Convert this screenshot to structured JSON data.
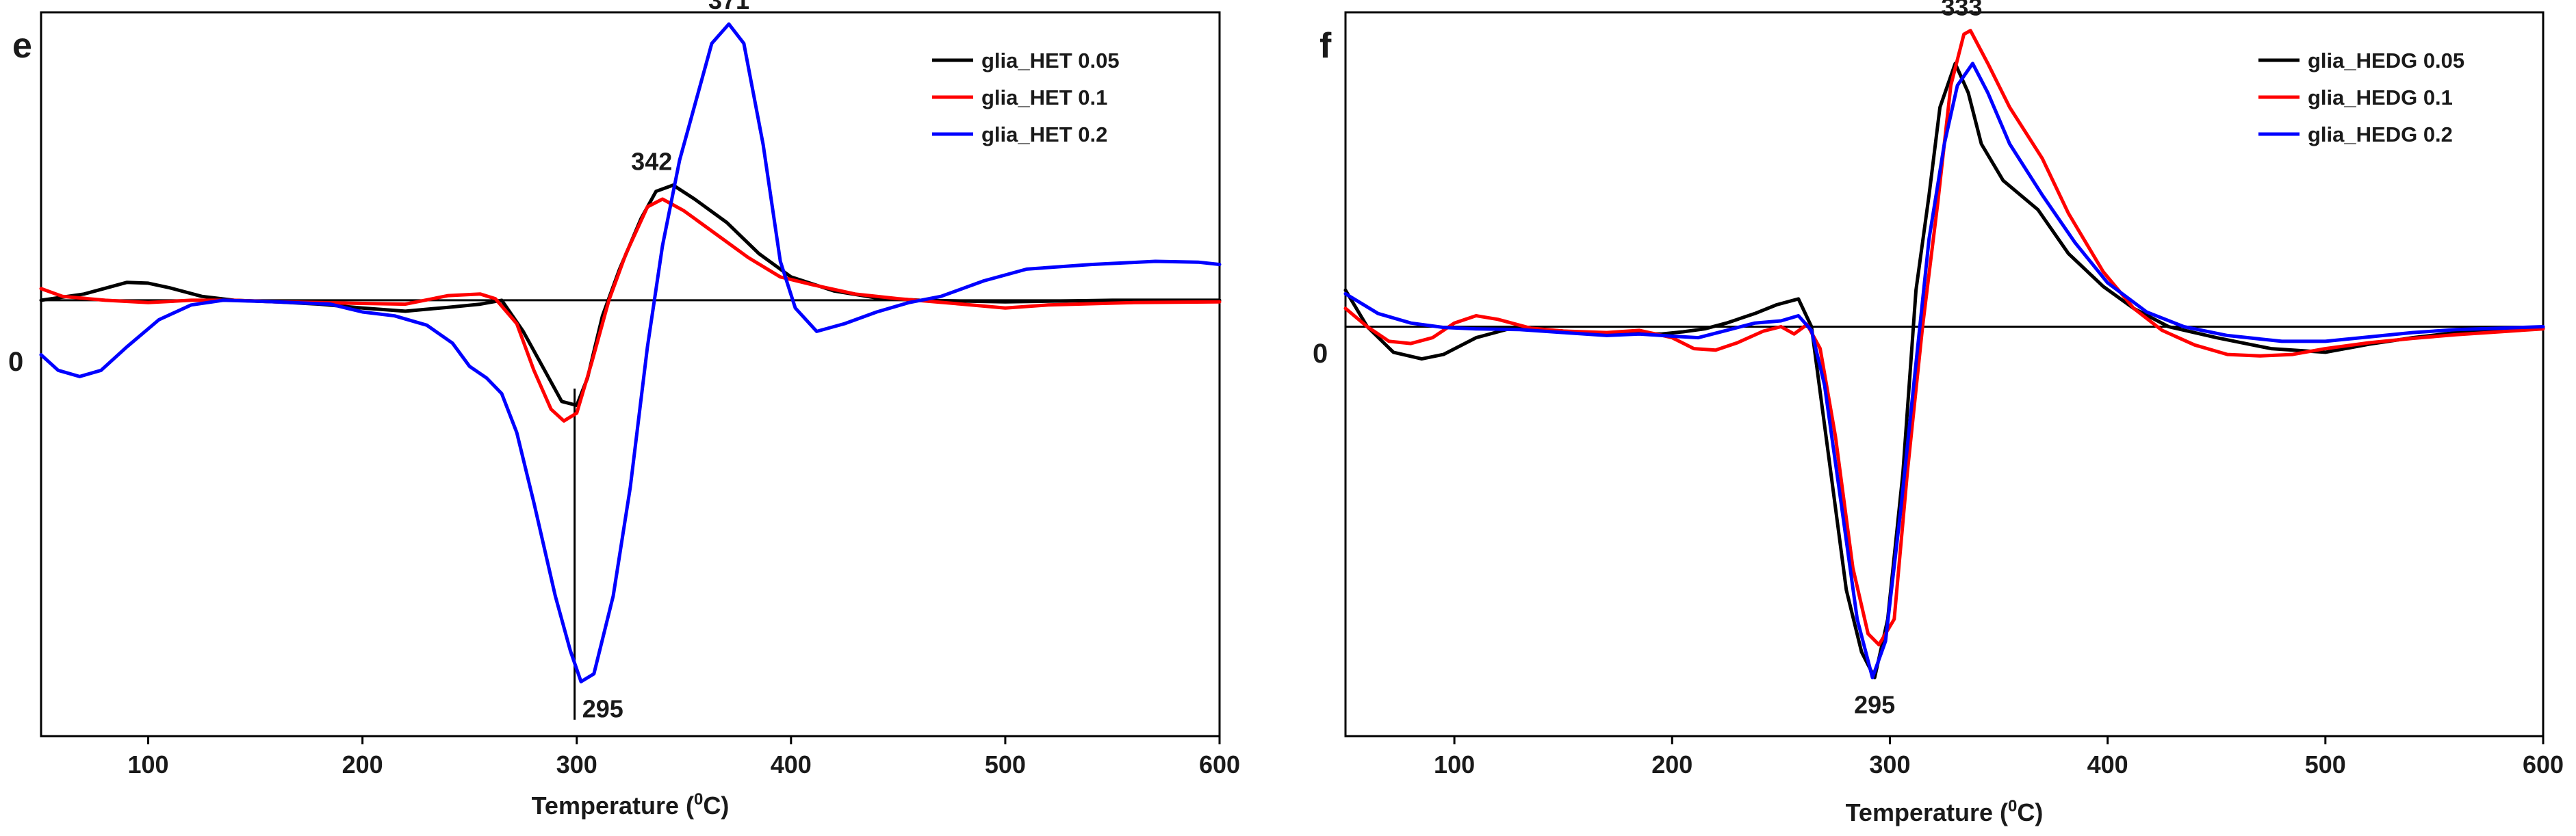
{
  "chart_data": [
    {
      "type": "line",
      "panel": "e",
      "title": "",
      "xlabel_main": "Temperature (",
      "xlabel_sup": "0",
      "xlabel_end": "C)",
      "ylabel": "",
      "xlim": [
        50,
        600
      ],
      "ylim": [
        -56,
        37
      ],
      "x_ticks": [
        100,
        200,
        300,
        400,
        500,
        600
      ],
      "x_tick_labels": [
        "100",
        "200",
        "300",
        "400",
        "500",
        "600"
      ],
      "zero_label": "0",
      "legend_position": "top-right",
      "series": [
        {
          "name": "glia_HET 0.05",
          "color": "#000000",
          "points": [
            [
              50,
              0
            ],
            [
              70,
              0.8
            ],
            [
              90,
              2.3
            ],
            [
              100,
              2.2
            ],
            [
              110,
              1.6
            ],
            [
              125,
              0.5
            ],
            [
              140,
              0
            ],
            [
              160,
              -0.2
            ],
            [
              180,
              -0.5
            ],
            [
              200,
              -1
            ],
            [
              220,
              -1.4
            ],
            [
              240,
              -0.9
            ],
            [
              255,
              -0.5
            ],
            [
              265,
              0
            ],
            [
              275,
              -4
            ],
            [
              285,
              -9
            ],
            [
              293,
              -13
            ],
            [
              300,
              -13.5
            ],
            [
              305,
              -10
            ],
            [
              312,
              -2
            ],
            [
              320,
              4
            ],
            [
              330,
              10.5
            ],
            [
              337,
              14
            ],
            [
              345,
              14.8
            ],
            [
              355,
              13
            ],
            [
              370,
              10
            ],
            [
              385,
              6
            ],
            [
              400,
              3
            ],
            [
              420,
              1.2
            ],
            [
              440,
              0.3
            ],
            [
              460,
              0
            ],
            [
              500,
              -0.2
            ],
            [
              550,
              0
            ],
            [
              600,
              0
            ]
          ]
        },
        {
          "name": "glia_HET 0.1",
          "color": "#ff0000",
          "points": [
            [
              50,
              1.5
            ],
            [
              60,
              0.5
            ],
            [
              80,
              0
            ],
            [
              100,
              -0.3
            ],
            [
              120,
              0
            ],
            [
              140,
              0
            ],
            [
              160,
              -0.2
            ],
            [
              180,
              -0.3
            ],
            [
              200,
              -0.4
            ],
            [
              220,
              -0.5
            ],
            [
              240,
              0.6
            ],
            [
              255,
              0.8
            ],
            [
              262,
              0.2
            ],
            [
              272,
              -3
            ],
            [
              280,
              -9
            ],
            [
              288,
              -14
            ],
            [
              294,
              -15.5
            ],
            [
              300,
              -14.5
            ],
            [
              307,
              -8
            ],
            [
              315,
              0
            ],
            [
              323,
              6
            ],
            [
              333,
              12
            ],
            [
              340,
              13
            ],
            [
              350,
              11.5
            ],
            [
              365,
              8.5
            ],
            [
              380,
              5.5
            ],
            [
              395,
              3
            ],
            [
              410,
              2
            ],
            [
              430,
              0.8
            ],
            [
              450,
              0.2
            ],
            [
              480,
              -0.5
            ],
            [
              500,
              -1
            ],
            [
              520,
              -0.6
            ],
            [
              560,
              -0.3
            ],
            [
              600,
              -0.2
            ]
          ]
        },
        {
          "name": "glia_HET 0.2",
          "color": "#0000ff",
          "points": [
            [
              50,
              -7
            ],
            [
              58,
              -9
            ],
            [
              68,
              -9.8
            ],
            [
              78,
              -9
            ],
            [
              90,
              -6
            ],
            [
              105,
              -2.5
            ],
            [
              120,
              -0.6
            ],
            [
              135,
              0
            ],
            [
              160,
              -0.2
            ],
            [
              185,
              -0.5
            ],
            [
              200,
              -1.5
            ],
            [
              215,
              -2
            ],
            [
              230,
              -3.2
            ],
            [
              242,
              -5.5
            ],
            [
              250,
              -8.5
            ],
            [
              258,
              -10
            ],
            [
              265,
              -12
            ],
            [
              272,
              -17
            ],
            [
              280,
              -26
            ],
            [
              290,
              -38
            ],
            [
              297,
              -45
            ],
            [
              302,
              -49
            ],
            [
              308,
              -48
            ],
            [
              317,
              -38
            ],
            [
              325,
              -24
            ],
            [
              333,
              -6
            ],
            [
              340,
              7
            ],
            [
              348,
              18
            ],
            [
              356,
              26
            ],
            [
              363,
              33
            ],
            [
              371,
              35.5
            ],
            [
              378,
              33
            ],
            [
              387,
              20
            ],
            [
              395,
              5
            ],
            [
              402,
              -1
            ],
            [
              412,
              -4
            ],
            [
              425,
              -3
            ],
            [
              440,
              -1.5
            ],
            [
              455,
              -0.3
            ],
            [
              470,
              0.5
            ],
            [
              490,
              2.5
            ],
            [
              510,
              4
            ],
            [
              540,
              4.6
            ],
            [
              570,
              5
            ],
            [
              590,
              4.9
            ],
            [
              600,
              4.6
            ]
          ]
        }
      ],
      "annotations": [
        {
          "text": "371",
          "x": 371,
          "y": 35.5
        },
        {
          "text": "342",
          "x": 342,
          "y": 14.8
        },
        {
          "text": "295",
          "x": 300,
          "y": -49
        }
      ],
      "reference_line_x": 299
    },
    {
      "type": "line",
      "panel": "f",
      "title": "",
      "xlabel_main": "Temperature (",
      "xlabel_sup": "0",
      "xlabel_end": "C)",
      "ylabel": "",
      "xlim": [
        50,
        600
      ],
      "ylim": [
        -56,
        43
      ],
      "x_ticks": [
        100,
        200,
        300,
        400,
        500,
        600
      ],
      "x_tick_labels": [
        "100",
        "200",
        "300",
        "400",
        "500",
        "600"
      ],
      "zero_label": "0",
      "legend_position": "top-right",
      "series": [
        {
          "name": "glia_HEDG 0.05",
          "color": "#000000",
          "points": [
            [
              50,
              5
            ],
            [
              60,
              0
            ],
            [
              72,
              -3.5
            ],
            [
              85,
              -4.4
            ],
            [
              95,
              -3.8
            ],
            [
              110,
              -1.5
            ],
            [
              125,
              -0.3
            ],
            [
              140,
              -0.4
            ],
            [
              160,
              -0.8
            ],
            [
              180,
              -0.9
            ],
            [
              195,
              -1
            ],
            [
              205,
              -0.7
            ],
            [
              215,
              -0.3
            ],
            [
              225,
              0.5
            ],
            [
              238,
              1.8
            ],
            [
              248,
              3
            ],
            [
              258,
              3.8
            ],
            [
              264,
              0
            ],
            [
              272,
              -18
            ],
            [
              280,
              -36
            ],
            [
              287,
              -44.5
            ],
            [
              293,
              -48
            ],
            [
              299,
              -40
            ],
            [
              306,
              -20
            ],
            [
              312,
              5
            ],
            [
              318,
              18
            ],
            [
              323,
              30
            ],
            [
              330,
              36
            ],
            [
              336,
              32
            ],
            [
              342,
              25
            ],
            [
              352,
              20
            ],
            [
              368,
              16
            ],
            [
              382,
              10
            ],
            [
              398,
              5.5
            ],
            [
              412,
              2.5
            ],
            [
              428,
              0
            ],
            [
              450,
              -1.5
            ],
            [
              475,
              -3
            ],
            [
              500,
              -3.5
            ],
            [
              520,
              -2.4
            ],
            [
              540,
              -1.5
            ],
            [
              560,
              -0.8
            ],
            [
              580,
              -0.4
            ],
            [
              600,
              -0.2
            ]
          ]
        },
        {
          "name": "glia_HEDG 0.1",
          "color": "#ff0000",
          "points": [
            [
              50,
              2.5
            ],
            [
              60,
              0
            ],
            [
              70,
              -2
            ],
            [
              80,
              -2.3
            ],
            [
              90,
              -1.5
            ],
            [
              100,
              0.5
            ],
            [
              110,
              1.5
            ],
            [
              120,
              1
            ],
            [
              135,
              -0.2
            ],
            [
              150,
              -0.6
            ],
            [
              170,
              -0.8
            ],
            [
              185,
              -0.5
            ],
            [
              200,
              -1.5
            ],
            [
              210,
              -3
            ],
            [
              220,
              -3.2
            ],
            [
              230,
              -2.2
            ],
            [
              242,
              -0.6
            ],
            [
              250,
              0
            ],
            [
              256,
              -1
            ],
            [
              262,
              0.3
            ],
            [
              268,
              -3
            ],
            [
              275,
              -15
            ],
            [
              283,
              -33
            ],
            [
              290,
              -42
            ],
            [
              295,
              -43.5
            ],
            [
              302,
              -40
            ],
            [
              308,
              -20
            ],
            [
              315,
              0
            ],
            [
              322,
              17
            ],
            [
              328,
              33
            ],
            [
              334,
              40
            ],
            [
              337,
              40.5
            ],
            [
              345,
              36
            ],
            [
              355,
              30
            ],
            [
              370,
              23
            ],
            [
              382,
              15.5
            ],
            [
              398,
              7.5
            ],
            [
              412,
              2.5
            ],
            [
              425,
              -0.5
            ],
            [
              440,
              -2.5
            ],
            [
              455,
              -3.8
            ],
            [
              470,
              -4
            ],
            [
              485,
              -3.8
            ],
            [
              500,
              -3
            ],
            [
              520,
              -2.2
            ],
            [
              540,
              -1.6
            ],
            [
              560,
              -1.1
            ],
            [
              580,
              -0.7
            ],
            [
              600,
              -0.3
            ]
          ]
        },
        {
          "name": "glia_HEDG 0.2",
          "color": "#0000ff",
          "points": [
            [
              50,
              4.5
            ],
            [
              65,
              1.8
            ],
            [
              80,
              0.5
            ],
            [
              95,
              -0.1
            ],
            [
              110,
              -0.3
            ],
            [
              130,
              -0.4
            ],
            [
              150,
              -0.8
            ],
            [
              170,
              -1.2
            ],
            [
              185,
              -1
            ],
            [
              200,
              -1.3
            ],
            [
              212,
              -1.5
            ],
            [
              225,
              -0.5
            ],
            [
              238,
              0.5
            ],
            [
              250,
              0.8
            ],
            [
              258,
              1.5
            ],
            [
              264,
              -0.5
            ],
            [
              270,
              -8
            ],
            [
              278,
              -25
            ],
            [
              285,
              -40
            ],
            [
              292,
              -48
            ],
            [
              298,
              -43
            ],
            [
              305,
              -25
            ],
            [
              312,
              -5
            ],
            [
              318,
              12
            ],
            [
              325,
              25
            ],
            [
              331,
              33
            ],
            [
              338,
              36
            ],
            [
              345,
              32
            ],
            [
              355,
              25
            ],
            [
              370,
              18
            ],
            [
              385,
              11.5
            ],
            [
              400,
              6
            ],
            [
              418,
              2
            ],
            [
              435,
              0
            ],
            [
              455,
              -1.2
            ],
            [
              480,
              -2
            ],
            [
              500,
              -2
            ],
            [
              520,
              -1.4
            ],
            [
              540,
              -0.8
            ],
            [
              560,
              -0.4
            ],
            [
              580,
              -0.2
            ],
            [
              600,
              0
            ]
          ]
        }
      ],
      "annotations": [
        {
          "text": "333",
          "x": 333,
          "y": 40.5
        },
        {
          "text": "295",
          "x": 293,
          "y": -48
        }
      ]
    }
  ]
}
